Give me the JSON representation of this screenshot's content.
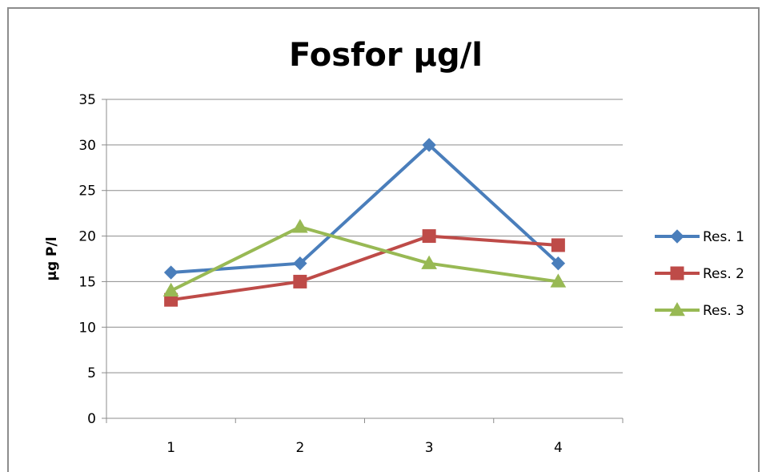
{
  "chart_data": {
    "type": "line",
    "title": "Fosfor µg/l",
    "xlabel": "",
    "ylabel": "µg P/l",
    "categories": [
      "1",
      "2",
      "3",
      "4"
    ],
    "ylim": [
      0,
      35
    ],
    "yticks": [
      "0",
      "5",
      "10",
      "15",
      "20",
      "25",
      "30",
      "35"
    ],
    "grid": true,
    "legend_position": "right",
    "series": [
      {
        "name": "Res. 1",
        "values": [
          16,
          17,
          30,
          17
        ],
        "color": "#4a7ebb",
        "marker": "diamond"
      },
      {
        "name": "Res. 2",
        "values": [
          13,
          15,
          20,
          19
        ],
        "color": "#be4b48",
        "marker": "square"
      },
      {
        "name": "Res. 3",
        "values": [
          14,
          21,
          17,
          15
        ],
        "color": "#98b954",
        "marker": "triangle"
      }
    ]
  }
}
